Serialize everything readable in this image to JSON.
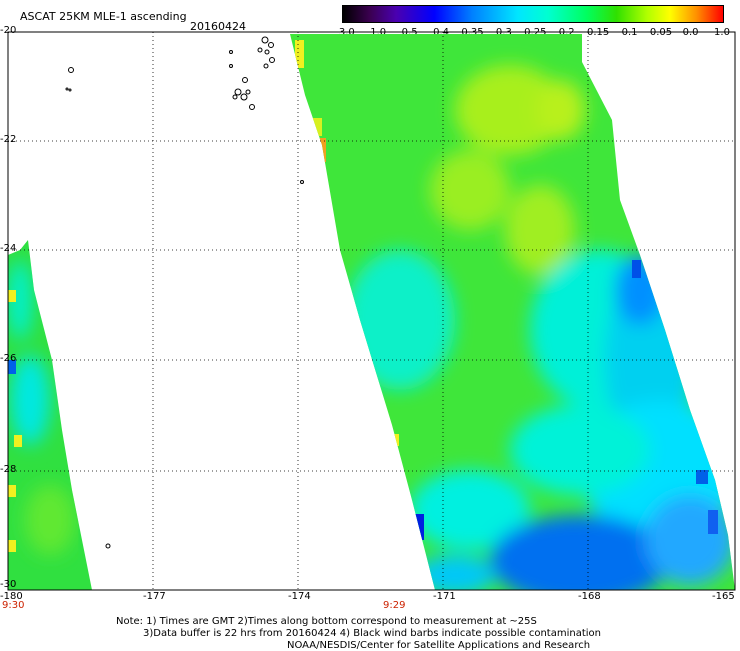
{
  "header": {
    "title": "ASCAT 25KM MLE-1 ascending",
    "date": "20160424"
  },
  "colorbar": {
    "labels": [
      "-3.0",
      "-1.0",
      "-0.5",
      "-0.4",
      "-0.35",
      "-0.3",
      "-0.25",
      "-0.2",
      "-0.15",
      "-0.1",
      "-0.05",
      "0.0",
      "1.0"
    ]
  },
  "map": {
    "lat_labels": [
      "-20",
      "-22",
      "-24",
      "-26",
      "-28",
      "-30"
    ],
    "lon_labels": [
      "-180",
      "-177",
      "-174",
      "-171",
      "-168",
      "-165"
    ],
    "time_labels": [
      "9:30",
      "9:29"
    ],
    "colors": {
      "land_outline": "#000000",
      "grid": "#000000",
      "time_text": "#cc2200"
    }
  },
  "notes": {
    "line1": "Note: 1) Times are GMT 2)Times along bottom correspond to measurement at ~25S",
    "line2": "3)Data buffer is 22 hrs from 20160424 4) Black wind barbs indicate possible contamination",
    "line3": "NOAA/NESDIS/Center for Satellite Applications and Research"
  }
}
